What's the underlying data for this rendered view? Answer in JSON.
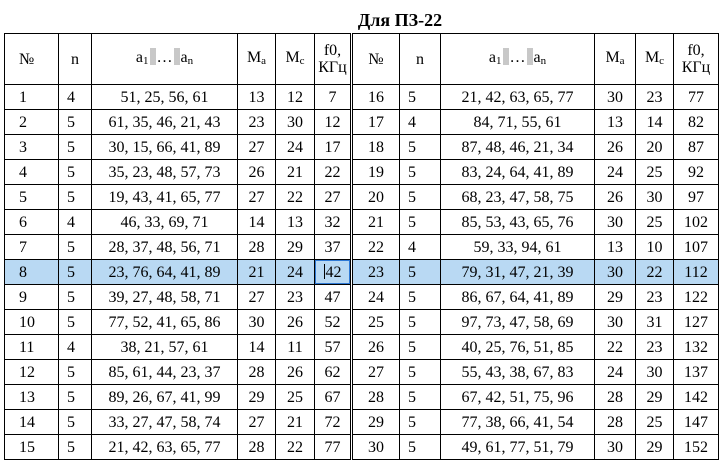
{
  "title": "Для ПЗ-22",
  "headers": {
    "num": "№",
    "n": "n",
    "a_first": "a",
    "a_first_sub": "1",
    "a_dots": "…",
    "a_last": "a",
    "a_last_sub": "n",
    "ma": "M",
    "ma_sub": "a",
    "mc": "M",
    "mc_sub": "c",
    "f_line1": "f0,",
    "f_line2": "КГц"
  },
  "left_rows": [
    {
      "num": "1",
      "n": "4",
      "a": "51, 25, 56, 61",
      "ma": "13",
      "mc": "12",
      "f": "7"
    },
    {
      "num": "2",
      "n": "5",
      "a": "61, 35, 46, 21, 43",
      "ma": "23",
      "mc": "30",
      "f": "12"
    },
    {
      "num": "3",
      "n": "5",
      "a": "30, 15, 66, 41, 89",
      "ma": "27",
      "mc": "24",
      "f": "17"
    },
    {
      "num": "4",
      "n": "5",
      "a": "35, 23, 48, 57, 73",
      "ma": "26",
      "mc": "21",
      "f": "22"
    },
    {
      "num": "5",
      "n": "5",
      "a": "19, 43, 41, 65, 77",
      "ma": "27",
      "mc": "22",
      "f": "27"
    },
    {
      "num": "6",
      "n": "4",
      "a": "46, 33, 69, 71",
      "ma": "14",
      "mc": "13",
      "f": "32"
    },
    {
      "num": "7",
      "n": "5",
      "a": "28, 37, 48, 56, 71",
      "ma": "28",
      "mc": "29",
      "f": "37"
    },
    {
      "num": "8",
      "n": "5",
      "a": "23, 76, 64, 41, 89",
      "ma": "21",
      "mc": "24",
      "f": "42"
    },
    {
      "num": "9",
      "n": "5",
      "a": "39, 27, 48, 58, 71",
      "ma": "27",
      "mc": "23",
      "f": "47"
    },
    {
      "num": "10",
      "n": "5",
      "a": "77, 52, 41, 65, 86",
      "ma": "30",
      "mc": "26",
      "f": "52"
    },
    {
      "num": "11",
      "n": "4",
      "a": "38, 21, 57, 61",
      "ma": "14",
      "mc": "11",
      "f": "57"
    },
    {
      "num": "12",
      "n": "5",
      "a": "85, 61, 44, 23, 37",
      "ma": "28",
      "mc": "26",
      "f": "62"
    },
    {
      "num": "13",
      "n": "5",
      "a": "89, 26, 67, 41, 99",
      "ma": "29",
      "mc": "25",
      "f": "67"
    },
    {
      "num": "14",
      "n": "5",
      "a": "33, 27, 47, 58, 74",
      "ma": "27",
      "mc": "21",
      "f": "72"
    },
    {
      "num": "15",
      "n": "5",
      "a": "21, 42, 63, 65, 77",
      "ma": "28",
      "mc": "22",
      "f": "77"
    }
  ],
  "right_rows": [
    {
      "num": "16",
      "n": "5",
      "a": "21, 42, 63, 65, 77",
      "ma": "30",
      "mc": "23",
      "f": "77"
    },
    {
      "num": "17",
      "n": "4",
      "a": "84, 71, 55, 61",
      "ma": "13",
      "mc": "14",
      "f": "82"
    },
    {
      "num": "18",
      "n": "5",
      "a": "87, 48, 46, 21, 34",
      "ma": "26",
      "mc": "20",
      "f": "87"
    },
    {
      "num": "19",
      "n": "5",
      "a": "83, 24, 64, 41, 89",
      "ma": "24",
      "mc": "25",
      "f": "92"
    },
    {
      "num": "20",
      "n": "5",
      "a": "68, 23, 47, 58, 75",
      "ma": "26",
      "mc": "30",
      "f": "97"
    },
    {
      "num": "21",
      "n": "5",
      "a": "85, 53, 43, 65, 76",
      "ma": "30",
      "mc": "25",
      "f": "102"
    },
    {
      "num": "22",
      "n": "4",
      "a": "59, 33, 94, 61",
      "ma": "13",
      "mc": "10",
      "f": "107"
    },
    {
      "num": "23",
      "n": "5",
      "a": "79, 31, 47, 21, 39",
      "ma": "30",
      "mc": "22",
      "f": "112"
    },
    {
      "num": "24",
      "n": "5",
      "a": "86, 67, 64, 41, 89",
      "ma": "29",
      "mc": "23",
      "f": "122"
    },
    {
      "num": "25",
      "n": "5",
      "a": "97, 73, 47, 58, 69",
      "ma": "30",
      "mc": "31",
      "f": "127"
    },
    {
      "num": "26",
      "n": "5",
      "a": "40, 25, 76, 51, 85",
      "ma": "22",
      "mc": "23",
      "f": "132"
    },
    {
      "num": "27",
      "n": "5",
      "a": "55, 43, 38, 67, 83",
      "ma": "24",
      "mc": "30",
      "f": "137"
    },
    {
      "num": "28",
      "n": "5",
      "a": "67, 42, 51, 75, 96",
      "ma": "28",
      "mc": "29",
      "f": "142"
    },
    {
      "num": "29",
      "n": "5",
      "a": "77, 38, 66, 41, 54",
      "ma": "28",
      "mc": "25",
      "f": "147"
    },
    {
      "num": "30",
      "n": "5",
      "a": "49, 61, 77, 51, 79",
      "ma": "30",
      "mc": "29",
      "f": "152"
    }
  ],
  "selected_row": "8",
  "colors": {
    "selection_fill": "#b9d9f3",
    "selection_border": "#2f7ad6",
    "highlight_gray": "#c8c8c8"
  }
}
